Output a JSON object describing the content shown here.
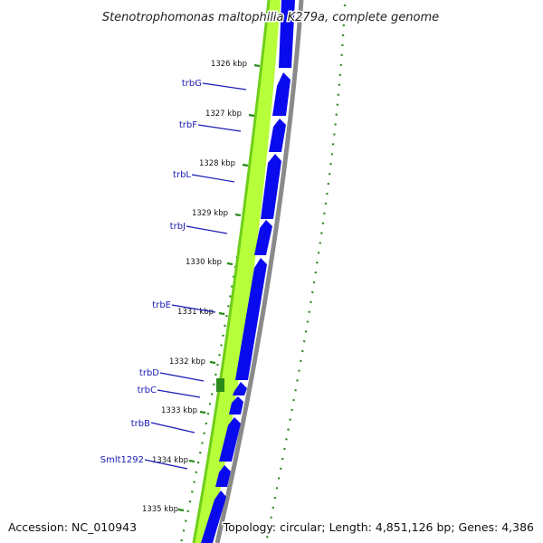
{
  "title": "Stenotrophomonas maltophilia K279a, complete genome",
  "footer": {
    "accession": "Accession: NC_010943",
    "summary": "Topology: circular; Length: 4,851,126 bp; Genes: 4,386"
  },
  "colors": {
    "gene_arrow": "#0a0aee",
    "gc_content": "#b6ff3a",
    "gc_skew_dark": "#2a8a1a",
    "backbone": "#8a8a8a",
    "label": "#1a1ab4"
  },
  "kbp_ticks": [
    "1326 kbp",
    "1327 kbp",
    "1328 kbp",
    "1329 kbp",
    "1330 kbp",
    "1331 kbp",
    "1332 kbp",
    "1333 kbp",
    "1334 kbp",
    "1335 kbp"
  ],
  "genes": [
    "trbG",
    "trbF",
    "trbL",
    "trbJ",
    "trbE",
    "trbD",
    "trbC",
    "trbB",
    "Smlt1292"
  ]
}
